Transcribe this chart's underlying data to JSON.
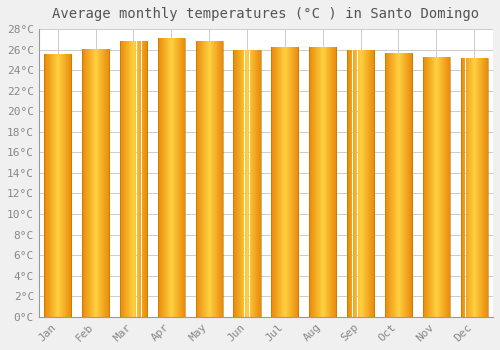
{
  "title": "Average monthly temperatures (°C ) in Santo Domingo",
  "months": [
    "Jan",
    "Feb",
    "Mar",
    "Apr",
    "May",
    "Jun",
    "Jul",
    "Aug",
    "Sep",
    "Oct",
    "Nov",
    "Dec"
  ],
  "values": [
    25.6,
    26.1,
    26.8,
    27.1,
    26.8,
    26.0,
    26.3,
    26.3,
    26.0,
    25.7,
    25.3,
    25.2
  ],
  "bar_color_edge": "#E8890A",
  "bar_color_center": "#FFD040",
  "background_color": "#F0F0F0",
  "plot_bg_color": "#FFFFFF",
  "grid_color": "#CCCCCC",
  "ylim": [
    0,
    28
  ],
  "ytick_step": 2,
  "title_fontsize": 10,
  "tick_fontsize": 8,
  "font_family": "monospace"
}
